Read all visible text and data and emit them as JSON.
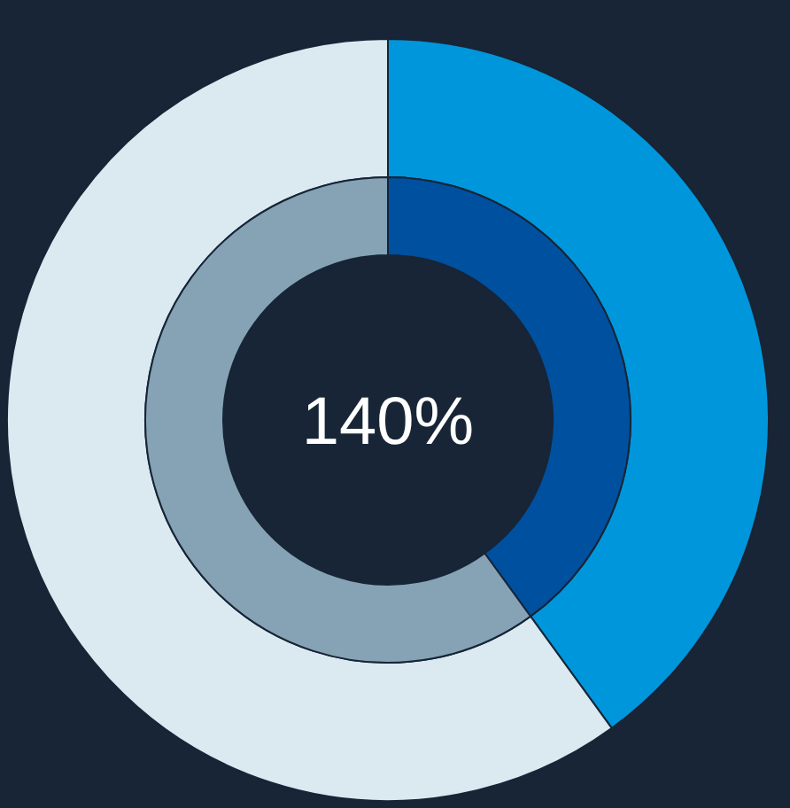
{
  "chart_data": {
    "type": "donut",
    "categories": [
      null,
      null
    ],
    "series": [
      {
        "values": [
          40,
          60
        ],
        "colors": [
          "#0096dc",
          "#dbe9f1"
        ]
      },
      {
        "values": [
          40,
          60
        ],
        "colors": [
          "#0050a0",
          "#86a3b6"
        ]
      }
    ],
    "annotations": [
      "140%"
    ]
  }
}
